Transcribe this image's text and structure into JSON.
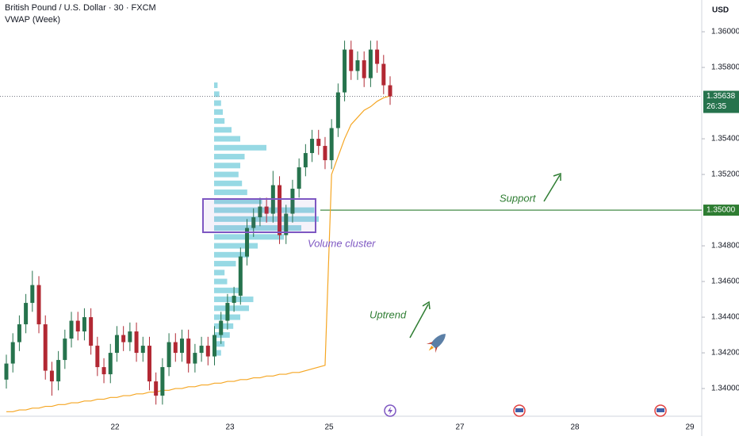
{
  "chart_data": {
    "type": "candlestick",
    "title": "British Pound / U.S. Dollar · 30 · FXCM",
    "subtitle": "VWAP (Week)",
    "currency": "USD",
    "up_color": "#26734d",
    "down_color": "#b22833",
    "ylim": [
      1.33867,
      1.36178
    ],
    "yticks": [
      {
        "value": 1.36,
        "label": "1.36000"
      },
      {
        "value": 1.358,
        "label": "1.35800"
      },
      {
        "value": 1.354,
        "label": "1.35400"
      },
      {
        "value": 1.352,
        "label": "1.35200"
      },
      {
        "value": 1.348,
        "label": "1.34800"
      },
      {
        "value": 1.346,
        "label": "1.34600"
      },
      {
        "value": 1.344,
        "label": "1.34400"
      },
      {
        "value": 1.342,
        "label": "1.34200"
      },
      {
        "value": 1.34,
        "label": "1.34000"
      }
    ],
    "x_labels": [
      "22",
      "23",
      "25",
      "27",
      "28",
      "29"
    ],
    "open": [
      1.3405,
      1.3414,
      1.3426,
      1.3436,
      1.3448,
      1.3458,
      1.3436,
      1.341,
      1.3404,
      1.3416,
      1.3428,
      1.3438,
      1.3432,
      1.344,
      1.3424,
      1.3412,
      1.3408,
      1.342,
      1.343,
      1.3426,
      1.3432,
      1.342,
      1.3424,
      1.3404,
      1.3396,
      1.3412,
      1.3426,
      1.342,
      1.3428,
      1.3414,
      1.342,
      1.3424,
      1.3418,
      1.343,
      1.3438,
      1.3448,
      1.3452,
      1.3474,
      1.349,
      1.3496,
      1.3502,
      1.3498,
      1.3514,
      1.3486,
      1.3498,
      1.3512,
      1.3524,
      1.3532,
      1.354,
      1.3536,
      1.3528,
      1.3546,
      1.3566,
      1.359,
      1.3578,
      1.3584,
      1.3574,
      1.359,
      1.3582,
      1.357
    ],
    "high": [
      1.3419,
      1.3431,
      1.3441,
      1.3453,
      1.3466,
      1.3463,
      1.3441,
      1.3415,
      1.3421,
      1.3433,
      1.3443,
      1.3443,
      1.3445,
      1.3445,
      1.3429,
      1.3417,
      1.3425,
      1.3435,
      1.3435,
      1.3437,
      1.3437,
      1.3429,
      1.3429,
      1.3409,
      1.3417,
      1.3431,
      1.3431,
      1.3433,
      1.3433,
      1.3425,
      1.3429,
      1.3429,
      1.3435,
      1.3443,
      1.3453,
      1.3457,
      1.3479,
      1.3495,
      1.3501,
      1.3507,
      1.3507,
      1.3522,
      1.3519,
      1.3503,
      1.3517,
      1.3529,
      1.3537,
      1.3545,
      1.3545,
      1.3541,
      1.3551,
      1.3571,
      1.3595,
      1.3595,
      1.3589,
      1.3589,
      1.3595,
      1.3595,
      1.3587,
      1.3575
    ],
    "low": [
      1.34,
      1.3409,
      1.3421,
      1.3431,
      1.3443,
      1.3431,
      1.3405,
      1.3396,
      1.3399,
      1.3411,
      1.3423,
      1.3427,
      1.3427,
      1.3419,
      1.3407,
      1.3403,
      1.3403,
      1.3415,
      1.3421,
      1.3421,
      1.3415,
      1.3415,
      1.3399,
      1.3391,
      1.3391,
      1.3407,
      1.3415,
      1.3415,
      1.3409,
      1.3409,
      1.3415,
      1.3413,
      1.3413,
      1.3425,
      1.3433,
      1.3443,
      1.3447,
      1.3469,
      1.3485,
      1.3491,
      1.3493,
      1.3493,
      1.3481,
      1.3481,
      1.3493,
      1.3507,
      1.3519,
      1.3527,
      1.3531,
      1.3523,
      1.3523,
      1.3541,
      1.3561,
      1.3573,
      1.3573,
      1.3569,
      1.3569,
      1.3577,
      1.3565,
      1.3559
    ],
    "close": [
      1.3414,
      1.3426,
      1.3436,
      1.3448,
      1.3458,
      1.3436,
      1.341,
      1.3404,
      1.3416,
      1.3428,
      1.3438,
      1.3432,
      1.344,
      1.3424,
      1.3412,
      1.3408,
      1.342,
      1.343,
      1.3426,
      1.3432,
      1.342,
      1.3424,
      1.3404,
      1.3396,
      1.3412,
      1.3426,
      1.342,
      1.3428,
      1.3414,
      1.342,
      1.3424,
      1.3418,
      1.343,
      1.3438,
      1.3448,
      1.3452,
      1.3474,
      1.349,
      1.3496,
      1.3502,
      1.3498,
      1.3514,
      1.3486,
      1.3498,
      1.3512,
      1.3524,
      1.3532,
      1.354,
      1.3536,
      1.3528,
      1.3546,
      1.3566,
      1.359,
      1.3578,
      1.3584,
      1.3574,
      1.359,
      1.3582,
      1.357,
      1.35638
    ],
    "vwap": {
      "color": "#f5a623",
      "values": [
        1.3387,
        1.3387,
        1.3388,
        1.3388,
        1.3389,
        1.3389,
        1.339,
        1.339,
        1.3391,
        1.3391,
        1.3392,
        1.3392,
        1.3393,
        1.3393,
        1.3394,
        1.3394,
        1.3395,
        1.3395,
        1.3396,
        1.3396,
        1.3397,
        1.3397,
        1.3398,
        1.3398,
        1.3399,
        1.3399,
        1.34,
        1.34,
        1.3401,
        1.3401,
        1.3402,
        1.3402,
        1.3403,
        1.3403,
        1.3404,
        1.3404,
        1.3405,
        1.3405,
        1.3406,
        1.3406,
        1.3407,
        1.3407,
        1.3408,
        1.3408,
        1.3409,
        1.3409,
        1.341,
        1.3411,
        1.3412,
        1.3413,
        1.352,
        1.353,
        1.354,
        1.3548,
        1.3552,
        1.3556,
        1.3558,
        1.3561,
        1.3563,
        1.3564
      ]
    },
    "volume_profile": {
      "color": "#5fc4d6",
      "prices": [
        1.357,
        1.3565,
        1.356,
        1.3555,
        1.355,
        1.3545,
        1.354,
        1.3535,
        1.353,
        1.3525,
        1.352,
        1.3515,
        1.351,
        1.3505,
        1.35,
        1.3495,
        1.349,
        1.3485,
        1.348,
        1.3475,
        1.347,
        1.3465,
        1.346,
        1.3455,
        1.345,
        1.3445,
        1.344,
        1.3435,
        1.343,
        1.3425,
        1.342
      ],
      "values": [
        4,
        6,
        8,
        10,
        12,
        20,
        30,
        60,
        35,
        30,
        28,
        32,
        38,
        55,
        115,
        120,
        100,
        80,
        50,
        40,
        25,
        12,
        15,
        30,
        45,
        40,
        30,
        22,
        18,
        12,
        8
      ]
    },
    "support": {
      "value": 1.35,
      "label": "1.35000",
      "color": "#2e7d32"
    },
    "last_price": {
      "value": 1.35638,
      "label": "1.35638",
      "countdown": "26:35",
      "color": "#26734d"
    },
    "annotations": {
      "support": "Support",
      "volume_cluster": "Volume cluster",
      "uptrend": "Uptrend"
    }
  }
}
